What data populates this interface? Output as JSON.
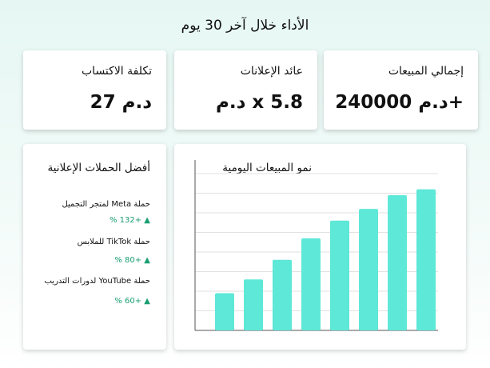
{
  "header": {
    "title": "الأداء خلال آخر 30 يوم"
  },
  "kpis": [
    {
      "label": "إجمالي المبيعات",
      "value": "د.م 240000+"
    },
    {
      "label": "عائد الإعلانات",
      "value": "د.م x 5.8"
    },
    {
      "label": "تكلفة الاكتساب",
      "value": "د.م 27"
    }
  ],
  "campaigns": {
    "title": "أفضل الحملات الإعلانية",
    "items": [
      {
        "name": "حملة Meta لمتجر التجميل",
        "change": "% 132+"
      },
      {
        "name": "حملة TikTok للملابس",
        "change": "% 80+"
      },
      {
        "name": "حملة YouTube لدورات التدريب",
        "change": "% 60+"
      }
    ]
  },
  "chart_data": {
    "type": "bar",
    "title": "نمو المبيعات اليومية",
    "values": [
      1.9,
      2.6,
      3.6,
      4.7,
      5.6,
      6.2,
      6.9,
      7.2
    ],
    "color": "#5ee8d8",
    "ylim": [
      0,
      8
    ],
    "yticks": [
      0,
      1,
      2,
      3,
      4,
      5,
      6,
      7,
      8
    ],
    "grid": true
  }
}
